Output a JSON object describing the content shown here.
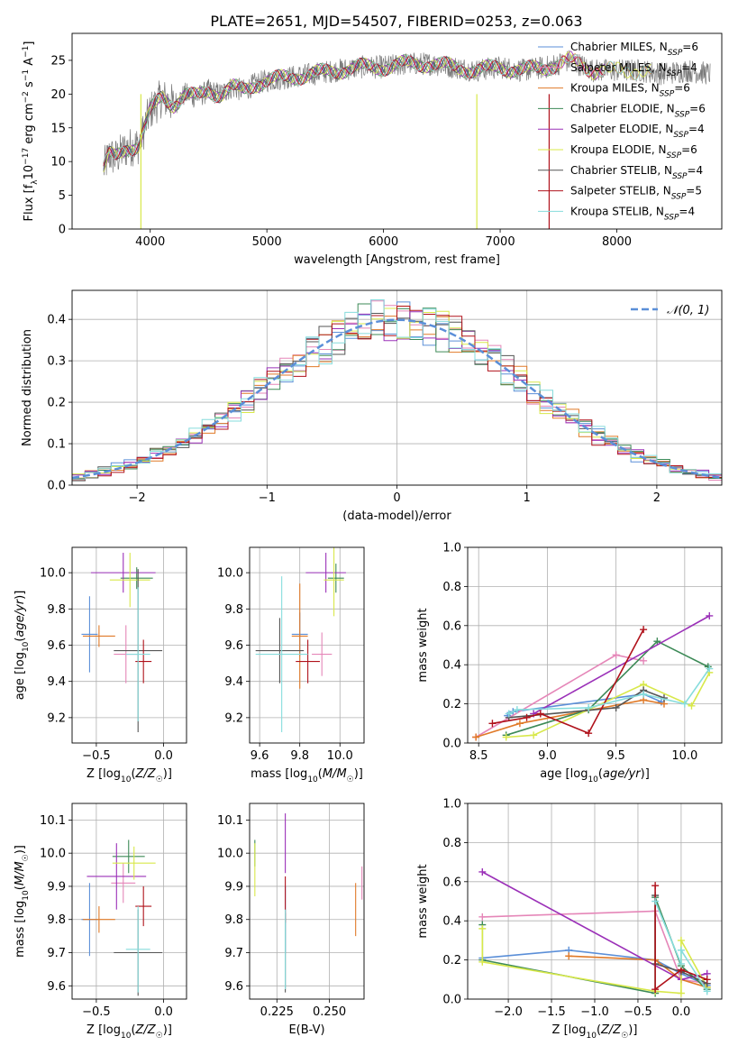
{
  "figure": {
    "title": "PLATE=2651, MJD=54507, FIBERID=0253, z=0.063"
  },
  "colors": {
    "Chabrier MILES": "#5b8fd8",
    "Salpeter MILES": "#e586b8",
    "Kroupa MILES": "#e07a28",
    "Chabrier ELODIE": "#3d8a57",
    "Salpeter ELODIE": "#9b30b8",
    "Kroupa ELODIE": "#d8e84a",
    "Chabrier STELIB": "#555555",
    "Salpeter STELIB": "#b0121b",
    "Kroupa STELIB": "#86dcdc",
    "gaussian": "#5b8fd8",
    "grid": "#b0b0b0"
  },
  "chart_data": [
    {
      "id": "spectrum",
      "type": "line",
      "xlabel": "wavelength [Angstrom, rest frame]",
      "ylabel": "Flux [f_λ 10^-17 erg cm^-2 s^-1 A^-1]",
      "xlim": [
        3330,
        8900
      ],
      "ylim": [
        0,
        29
      ],
      "xticks": [
        4000,
        5000,
        6000,
        7000,
        8000
      ],
      "yticks": [
        0,
        5,
        10,
        15,
        20,
        25
      ],
      "grid": false,
      "legend": "right",
      "legend_entries": [
        {
          "label": "Chabrier MILES, N",
          "sub": "SSP",
          "suffix": "=6"
        },
        {
          "label": "Salpeter MILES, N",
          "sub": "SSP",
          "suffix": "=4"
        },
        {
          "label": "Kroupa MILES, N",
          "sub": "SSP",
          "suffix": "=6"
        },
        {
          "label": "Chabrier ELODIE, N",
          "sub": "SSP",
          "suffix": "=6"
        },
        {
          "label": "Salpeter ELODIE, N",
          "sub": "SSP",
          "suffix": "=4"
        },
        {
          "label": "Kroupa ELODIE, N",
          "sub": "SSP",
          "suffix": "=6"
        },
        {
          "label": "Chabrier STELIB, N",
          "sub": "SSP",
          "suffix": "=4"
        },
        {
          "label": "Salpeter STELIB, N",
          "sub": "SSP",
          "suffix": "=5"
        },
        {
          "label": "Kroupa STELIB, N",
          "sub": "SSP",
          "suffix": "=4"
        }
      ],
      "data_anchors": {
        "wavelength": [
          3600,
          3650,
          3700,
          3800,
          3900,
          4000,
          4100,
          4200,
          4300,
          4400,
          4500,
          4600,
          4700,
          4800,
          4900,
          5000,
          5200,
          5400,
          5600,
          5800,
          6000,
          6200,
          6400,
          6600,
          6800,
          7000,
          7200,
          7400,
          7600,
          7800,
          8000,
          8200,
          8400,
          8600,
          8800
        ],
        "flux": [
          9,
          11,
          10.5,
          12,
          12.5,
          17.5,
          19.5,
          18.5,
          20,
          19.5,
          20.5,
          20,
          21,
          20.5,
          21.5,
          22,
          22.5,
          23,
          23.5,
          24,
          24,
          24.5,
          24.5,
          24,
          23.5,
          24,
          23.5,
          24,
          25,
          23.5,
          23.5,
          23.5,
          23,
          23.5,
          23
        ]
      },
      "spikes": [
        {
          "x": 3920,
          "y": 0,
          "color": "Kroupa ELODIE"
        },
        {
          "x": 6800,
          "y": 0,
          "color": "Kroupa ELODIE"
        },
        {
          "x": 7420,
          "y": 0,
          "color": "Salpeter STELIB"
        }
      ]
    },
    {
      "id": "residuals",
      "type": "histogram",
      "xlabel": "(data-model)/error",
      "ylabel": "Normed distribution",
      "xlim": [
        -2.5,
        2.5
      ],
      "ylim": [
        0,
        0.47
      ],
      "xticks": [
        -2,
        -1,
        0,
        1,
        2
      ],
      "yticks": [
        0,
        0.1,
        0.2,
        0.3,
        0.4
      ],
      "grid": true,
      "legend": "upper right",
      "gaussian_label": "𝒩(0, 1)",
      "bin_width": 0.1,
      "bin_range": [
        -2.5,
        2.5
      ]
    },
    {
      "id": "Z_age",
      "type": "errorbar",
      "xlabel": "Z [log10(Z/Z☉)]",
      "ylabel": "age [log10(age/yr)]",
      "xlim": [
        -0.68,
        0.17
      ],
      "ylim": [
        9.06,
        10.14
      ],
      "xticks": [
        -0.5,
        0.0
      ],
      "yticks": [
        9.2,
        9.4,
        9.6,
        9.8,
        10.0
      ],
      "grid": true,
      "points": [
        {
          "model": "Chabrier MILES",
          "x": -0.55,
          "xerr": 0.06,
          "y": 9.66,
          "yerr": 0.21
        },
        {
          "model": "Salpeter MILES",
          "x": -0.28,
          "xerr": 0.09,
          "y": 9.55,
          "yerr": 0.16
        },
        {
          "model": "Kroupa MILES",
          "x": -0.48,
          "xerr": 0.12,
          "y": 9.65,
          "yerr": 0.06
        },
        {
          "model": "Chabrier ELODIE",
          "x": -0.2,
          "xerr": 0.12,
          "y": 9.97,
          "yerr": 0.06
        },
        {
          "model": "Salpeter ELODIE",
          "x": -0.3,
          "xerr": 0.24,
          "y": 10.0,
          "yerr": 0.11
        },
        {
          "model": "Kroupa ELODIE",
          "x": -0.25,
          "xerr": 0.15,
          "y": 9.96,
          "yerr": 0.15
        },
        {
          "model": "Chabrier STELIB",
          "x": -0.19,
          "xerr": 0.18,
          "y": 9.57,
          "yerr": 0.45
        },
        {
          "model": "Salpeter STELIB",
          "x": -0.15,
          "xerr": 0.06,
          "y": 9.51,
          "yerr": 0.12
        },
        {
          "model": "Kroupa STELIB",
          "x": -0.19,
          "xerr": 0.09,
          "y": 9.55,
          "yerr": 0.37
        }
      ]
    },
    {
      "id": "mass_age",
      "type": "errorbar",
      "xlabel": "mass [log10(M/M☉)]",
      "ylabel": "",
      "xlim": [
        9.55,
        10.12
      ],
      "ylim": [
        9.06,
        10.14
      ],
      "xticks": [
        9.6,
        9.8,
        10.0
      ],
      "yticks": [
        9.2,
        9.4,
        9.6,
        9.8,
        10.0
      ],
      "grid": true,
      "points": [
        {
          "model": "Chabrier MILES",
          "x": 9.8,
          "xerr": 0.04,
          "y": 9.66,
          "yerr": 0.12
        },
        {
          "model": "Salpeter MILES",
          "x": 9.91,
          "xerr": 0.05,
          "y": 9.55,
          "yerr": 0.12
        },
        {
          "model": "Kroupa MILES",
          "x": 9.8,
          "xerr": 0.04,
          "y": 9.65,
          "yerr": 0.29
        },
        {
          "model": "Chabrier ELODIE",
          "x": 9.98,
          "xerr": 0.04,
          "y": 9.97,
          "yerr": 0.08
        },
        {
          "model": "Salpeter ELODIE",
          "x": 9.93,
          "xerr": 0.1,
          "y": 10.0,
          "yerr": 0.11
        },
        {
          "model": "Kroupa ELODIE",
          "x": 9.97,
          "xerr": 0.05,
          "y": 9.96,
          "yerr": 0.2
        },
        {
          "model": "Chabrier STELIB",
          "x": 9.7,
          "xerr": 0.12,
          "y": 9.57,
          "yerr": 0.18
        },
        {
          "model": "Salpeter STELIB",
          "x": 9.84,
          "xerr": 0.06,
          "y": 9.51,
          "yerr": 0.12
        },
        {
          "model": "Kroupa STELIB",
          "x": 9.71,
          "xerr": 0.13,
          "y": 9.55,
          "yerr": 0.43
        }
      ]
    },
    {
      "id": "age_weight",
      "type": "line",
      "xlabel": "age [log10(age/yr)]",
      "ylabel": "mass weight",
      "xlim": [
        8.42,
        10.27
      ],
      "ylim": [
        0,
        1.0
      ],
      "xticks": [
        8.5,
        9.0,
        9.5,
        10.0
      ],
      "yticks": [
        0.0,
        0.2,
        0.4,
        0.6,
        0.8,
        1.0
      ],
      "grid": true,
      "series": [
        {
          "model": "Chabrier MILES",
          "points": [
            [
              8.71,
              0.14
            ],
            [
              8.75,
              0.16
            ],
            [
              9.7,
              0.25
            ],
            [
              9.83,
              0.21
            ]
          ]
        },
        {
          "model": "Salpeter MILES",
          "points": [
            [
              8.48,
              0.03
            ],
            [
              9.5,
              0.45
            ],
            [
              9.7,
              0.42
            ]
          ]
        },
        {
          "model": "Kroupa MILES",
          "points": [
            [
              8.48,
              0.03
            ],
            [
              8.8,
              0.1
            ],
            [
              9.7,
              0.22
            ],
            [
              9.85,
              0.2
            ]
          ]
        },
        {
          "model": "Chabrier ELODIE",
          "points": [
            [
              8.7,
              0.04
            ],
            [
              9.3,
              0.17
            ],
            [
              9.8,
              0.52
            ],
            [
              10.17,
              0.39
            ]
          ]
        },
        {
          "model": "Salpeter ELODIE",
          "points": [
            [
              8.9,
              0.15
            ],
            [
              10.18,
              0.65
            ]
          ]
        },
        {
          "model": "Kroupa ELODIE",
          "points": [
            [
              8.7,
              0.03
            ],
            [
              8.9,
              0.04
            ],
            [
              9.7,
              0.3
            ],
            [
              10.05,
              0.19
            ],
            [
              10.18,
              0.36
            ]
          ]
        },
        {
          "model": "Chabrier STELIB",
          "points": [
            [
              8.72,
              0.13
            ],
            [
              9.5,
              0.18
            ],
            [
              9.7,
              0.27
            ],
            [
              9.85,
              0.23
            ]
          ]
        },
        {
          "model": "Salpeter STELIB",
          "points": [
            [
              8.6,
              0.1
            ],
            [
              8.85,
              0.13
            ],
            [
              8.95,
              0.15
            ],
            [
              9.3,
              0.05
            ],
            [
              9.7,
              0.58
            ]
          ]
        },
        {
          "model": "Kroupa STELIB",
          "points": [
            [
              8.72,
              0.15
            ],
            [
              8.78,
              0.17
            ],
            [
              9.3,
              0.18
            ],
            [
              9.7,
              0.25
            ],
            [
              10.0,
              0.2
            ],
            [
              10.18,
              0.38
            ]
          ]
        }
      ]
    },
    {
      "id": "Z_mass",
      "type": "errorbar",
      "xlabel": "Z [log10(Z/Z☉)]",
      "ylabel": "mass [log10(M/M☉)]",
      "xlim": [
        -0.68,
        0.17
      ],
      "ylim": [
        9.56,
        10.15
      ],
      "xticks": [
        -0.5,
        0.0
      ],
      "yticks": [
        9.6,
        9.7,
        9.8,
        9.9,
        10.0,
        10.1
      ],
      "grid": true,
      "points": [
        {
          "model": "Chabrier MILES",
          "x": -0.55,
          "xerr": 0.06,
          "y": 9.8,
          "yerr": 0.11
        },
        {
          "model": "Salpeter MILES",
          "x": -0.3,
          "xerr": 0.09,
          "y": 9.91,
          "yerr": 0.06
        },
        {
          "model": "Kroupa MILES",
          "x": -0.48,
          "xerr": 0.12,
          "y": 9.8,
          "yerr": 0.04
        },
        {
          "model": "Chabrier ELODIE",
          "x": -0.26,
          "xerr": 0.12,
          "y": 9.99,
          "yerr": 0.05
        },
        {
          "model": "Salpeter ELODIE",
          "x": -0.35,
          "xerr": 0.22,
          "y": 9.93,
          "yerr": 0.1
        },
        {
          "model": "Kroupa ELODIE",
          "x": -0.22,
          "xerr": 0.16,
          "y": 9.97,
          "yerr": 0.05
        },
        {
          "model": "Chabrier STELIB",
          "x": -0.19,
          "xerr": 0.18,
          "y": 9.7,
          "yerr": 0.13
        },
        {
          "model": "Salpeter STELIB",
          "x": -0.15,
          "xerr": 0.06,
          "y": 9.84,
          "yerr": 0.06
        },
        {
          "model": "Kroupa STELIB",
          "x": -0.19,
          "xerr": 0.09,
          "y": 9.71,
          "yerr": 0.13
        }
      ]
    },
    {
      "id": "ebv_mass",
      "type": "errorbar",
      "xlabel": "E(B-V)",
      "ylabel": "",
      "xlim": [
        0.212,
        0.2665
      ],
      "ylim": [
        9.56,
        10.15
      ],
      "xticks": [
        0.225,
        0.25
      ],
      "xtick_labels": [
        "0.225",
        "0.250"
      ],
      "yticks": [
        9.6,
        9.7,
        9.8,
        9.9,
        10.0,
        10.1
      ],
      "grid": true,
      "points": [
        {
          "model": "Chabrier MILES",
          "x": 0.229,
          "xerr": 0,
          "y": 9.8,
          "yerr": 0.1
        },
        {
          "model": "Salpeter MILES",
          "x": 0.2655,
          "xerr": 0,
          "y": 9.91,
          "yerr": 0.05
        },
        {
          "model": "Kroupa MILES",
          "x": 0.2625,
          "xerr": 0,
          "y": 9.83,
          "yerr": 0.08
        },
        {
          "model": "Chabrier ELODIE",
          "x": 0.2145,
          "xerr": 0,
          "y": 10.0,
          "yerr": 0.04
        },
        {
          "model": "Salpeter ELODIE",
          "x": 0.229,
          "xerr": 0,
          "y": 10.03,
          "yerr": 0.09
        },
        {
          "model": "Kroupa ELODIE",
          "x": 0.2145,
          "xerr": 0,
          "y": 9.95,
          "yerr": 0.08
        },
        {
          "model": "Chabrier STELIB",
          "x": 0.229,
          "xerr": 0,
          "y": 9.7,
          "yerr": 0.12
        },
        {
          "model": "Salpeter STELIB",
          "x": 0.229,
          "xerr": 0,
          "y": 9.86,
          "yerr": 0.07
        },
        {
          "model": "Kroupa STELIB",
          "x": 0.229,
          "xerr": 0,
          "y": 9.71,
          "yerr": 0.12
        }
      ]
    },
    {
      "id": "Z_weight",
      "type": "line",
      "xlabel": "Z [log10(Z/Z☉)]",
      "ylabel": "mass weight",
      "xlim": [
        -2.47,
        0.47
      ],
      "ylim": [
        0,
        1.0
      ],
      "xticks": [
        -2.0,
        -1.5,
        -1.0,
        -0.5,
        0.0
      ],
      "yticks": [
        0.0,
        0.2,
        0.4,
        0.6,
        0.8,
        1.0
      ],
      "grid": true,
      "series": [
        {
          "model": "Chabrier MILES",
          "points": [
            [
              -2.3,
              0.21
            ],
            [
              -1.3,
              0.25
            ],
            [
              -0.3,
              0.2
            ],
            [
              0.0,
              0.13
            ],
            [
              0.3,
              0.07
            ]
          ]
        },
        {
          "model": "Salpeter MILES",
          "points": [
            [
              -2.3,
              0.42
            ],
            [
              -0.3,
              0.45
            ],
            [
              0.0,
              0.1
            ],
            [
              0.3,
              0.08
            ]
          ]
        },
        {
          "model": "Kroupa MILES",
          "points": [
            [
              -1.3,
              0.22
            ],
            [
              -0.3,
              0.2
            ],
            [
              0.0,
              0.1
            ],
            [
              0.3,
              0.06
            ]
          ]
        },
        {
          "model": "Chabrier ELODIE",
          "points": [
            [
              -2.3,
              0.38
            ],
            [
              -2.3,
              0.2
            ],
            [
              -0.3,
              0.03
            ],
            [
              -0.3,
              0.52
            ],
            [
              0.0,
              0.17
            ],
            [
              0.3,
              0.05
            ]
          ]
        },
        {
          "model": "Salpeter ELODIE",
          "points": [
            [
              -2.3,
              0.65
            ],
            [
              0.0,
              0.1
            ],
            [
              0.3,
              0.13
            ]
          ]
        },
        {
          "model": "Kroupa ELODIE",
          "points": [
            [
              -2.3,
              0.36
            ],
            [
              -2.3,
              0.19
            ],
            [
              -0.3,
              0.04
            ],
            [
              0.0,
              0.03
            ],
            [
              0.0,
              0.3
            ],
            [
              0.3,
              0.06
            ]
          ]
        },
        {
          "model": "Chabrier STELIB",
          "points": [
            [
              -0.3,
              0.53
            ],
            [
              -0.3,
              0.18
            ],
            [
              0.0,
              0.14
            ],
            [
              0.3,
              0.08
            ]
          ]
        },
        {
          "model": "Salpeter STELIB",
          "points": [
            [
              -0.3,
              0.58
            ],
            [
              -0.3,
              0.05
            ],
            [
              0.0,
              0.15
            ],
            [
              0.3,
              0.1
            ]
          ]
        },
        {
          "model": "Kroupa STELIB",
          "points": [
            [
              -0.3,
              0.5
            ],
            [
              0.0,
              0.18
            ],
            [
              0.0,
              0.25
            ],
            [
              0.3,
              0.04
            ]
          ]
        }
      ]
    }
  ]
}
